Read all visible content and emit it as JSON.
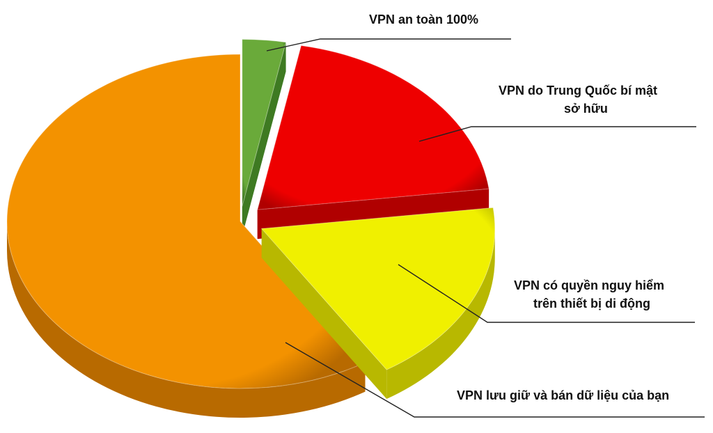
{
  "chart_data": {
    "type": "pie",
    "style": "3d-exploded",
    "slices": [
      {
        "label": "VPN an toàn 100%",
        "value": 3,
        "color": "#6aaa3a",
        "side": "#3e7a22"
      },
      {
        "label": "VPN do Trung Quốc bí mật sở hữu",
        "value": 20,
        "color": "#ee0000",
        "side": "#b00000"
      },
      {
        "label": "VPN có quyền nguy hiểm trên thiết bị di động",
        "value": 18,
        "color": "#f0f000",
        "side": "#b8b800"
      },
      {
        "label": "VPN lưu giữ và bán dữ liệu của bạn",
        "value": 59,
        "color": "#f39200",
        "side": "#b86a00"
      }
    ],
    "labels": {
      "green": "VPN an toàn 100%",
      "red_line1": "VPN do Trung Quốc bí mật",
      "red_line2": "sở hữu",
      "yellow_line1": "VPN có quyền nguy hiểm",
      "yellow_line2": "trên thiết bị di động",
      "orange": "VPN lưu giữ và bán dữ liệu của bạn"
    },
    "legend": "callouts"
  }
}
